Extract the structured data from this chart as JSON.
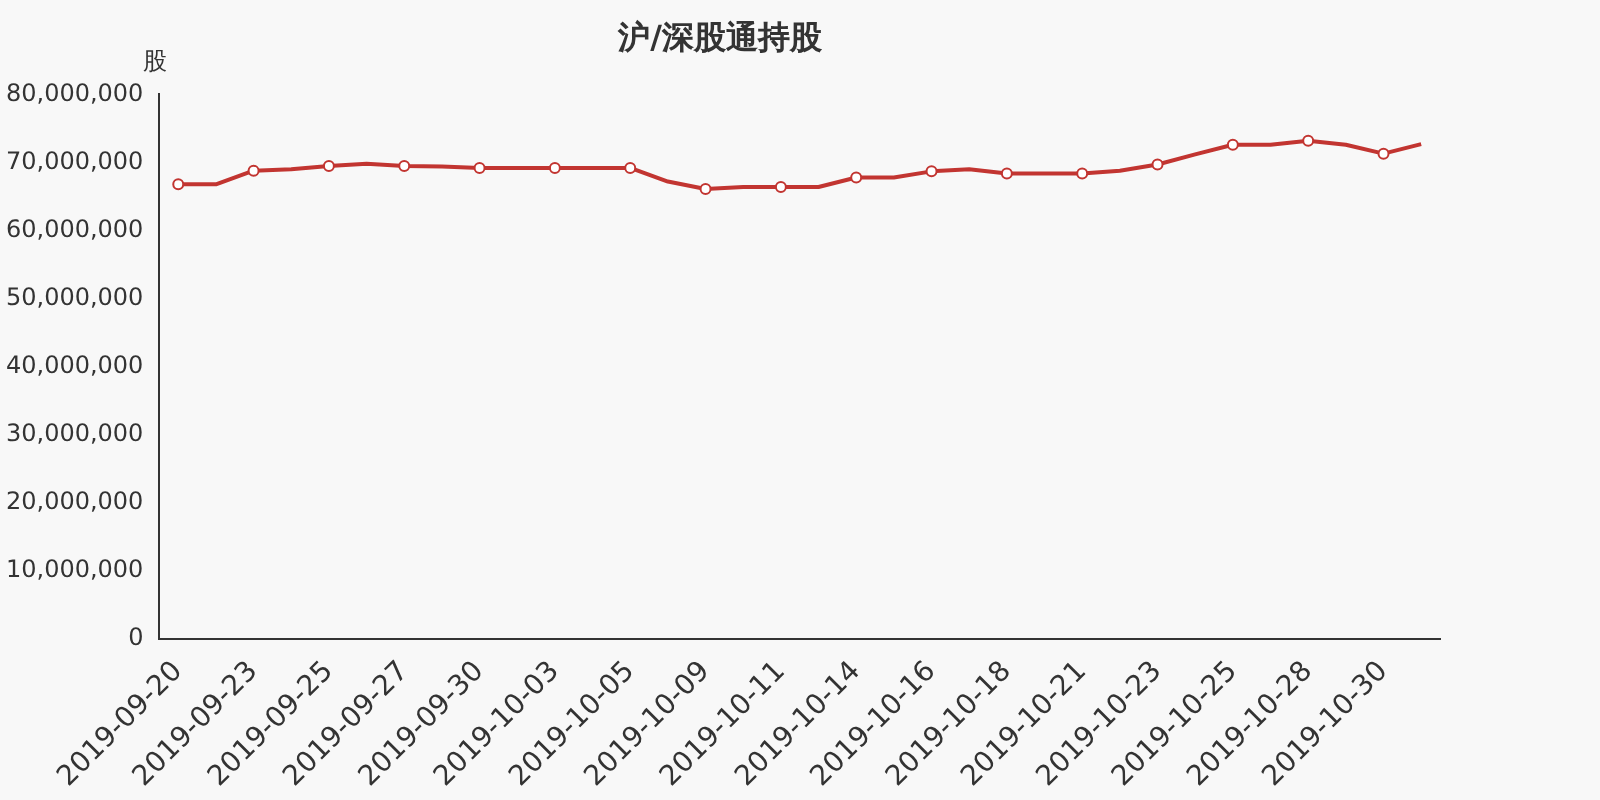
{
  "chart_data": {
    "type": "line",
    "title": "沪/深股通持股",
    "ylabel": "股",
    "categories": [
      "2019-09-20",
      null,
      "2019-09-23",
      null,
      "2019-09-25",
      null,
      "2019-09-27",
      null,
      "2019-09-30",
      null,
      "2019-10-03",
      null,
      "2019-10-05",
      null,
      "2019-10-09",
      null,
      "2019-10-11",
      null,
      "2019-10-14",
      null,
      "2019-10-16",
      null,
      "2019-10-18",
      null,
      "2019-10-21",
      null,
      "2019-10-23",
      null,
      "2019-10-25",
      null,
      "2019-10-28",
      null,
      "2019-10-30",
      null
    ],
    "series": [
      {
        "color": "#c23531",
        "values": [
          66800000,
          66800000,
          68800000,
          69000000,
          69500000,
          69800000,
          69500000,
          69400000,
          69200000,
          69200000,
          69200000,
          69200000,
          69200000,
          67200000,
          66100000,
          66400000,
          66400000,
          66400000,
          67800000,
          67800000,
          68700000,
          69000000,
          68400000,
          68400000,
          68400000,
          68800000,
          69700000,
          71200000,
          72600000,
          72600000,
          73200000,
          72600000,
          71300000,
          72700000
        ]
      }
    ],
    "ylim": [
      0,
      80000000
    ],
    "yticks": [
      0,
      {
        "value": 10000000,
        "label": "10,000,000"
      },
      {
        "value": 20000000,
        "label": "20,000,000"
      },
      {
        "value": 30000000,
        "label": "30,000,000"
      },
      {
        "value": 40000000,
        "label": "40,000,000"
      },
      {
        "value": 50000000,
        "label": "50,000,000"
      },
      {
        "value": 60000000,
        "label": "60,000,000"
      },
      {
        "value": 70000000,
        "label": "70,000,000"
      },
      {
        "value": 80000000,
        "label": "80,000,000"
      }
    ],
    "grid": false,
    "legend": false,
    "marker": "circle",
    "line_style": "solid"
  }
}
